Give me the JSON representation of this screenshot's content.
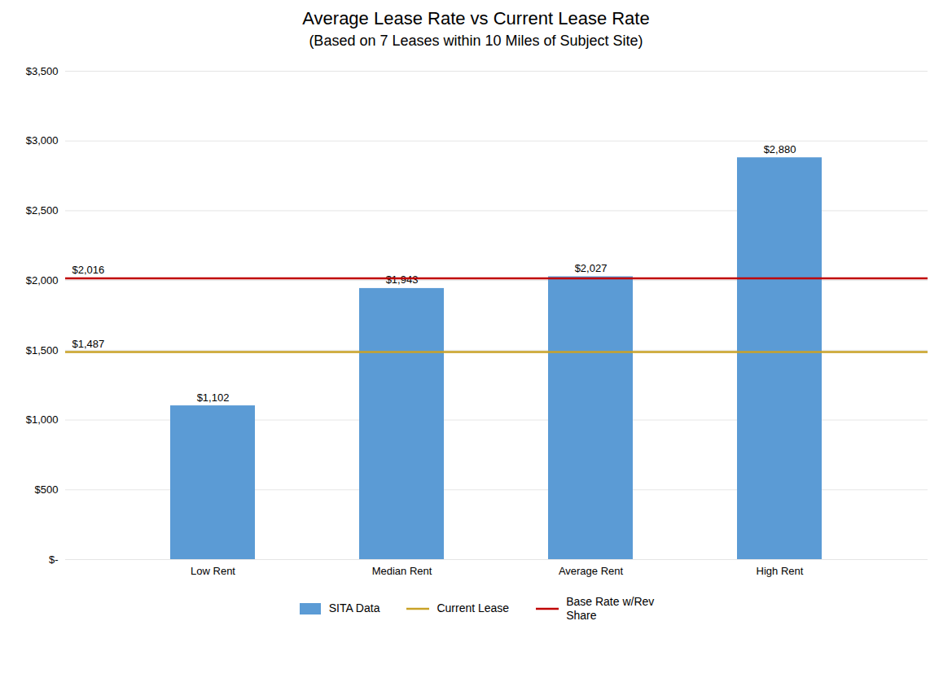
{
  "chart_data": {
    "type": "bar",
    "title": "Average Lease Rate vs Current Lease Rate",
    "subtitle": "(Based on 7 Leases within 10 Miles of Subject Site)",
    "categories": [
      "Low Rent",
      "Median Rent",
      "Average Rent",
      "High Rent"
    ],
    "series": [
      {
        "name": "SITA Data",
        "type": "bar",
        "color": "#5B9BD5",
        "values": [
          1102,
          1943,
          2027,
          2880
        ],
        "value_labels": [
          "$1,102",
          "$1,943",
          "$2,027",
          "$2,880"
        ]
      },
      {
        "name": "Current Lease",
        "type": "hline",
        "color": "#C9A227",
        "value": 1487,
        "value_label": "$1,487"
      },
      {
        "name": "Base Rate w/Rev\nShare",
        "type": "hline",
        "color": "#C00000",
        "value": 2016,
        "value_label": "$2,016"
      }
    ],
    "ylim": [
      0,
      3500
    ],
    "yticks": [
      {
        "value": 0,
        "label": "$-"
      },
      {
        "value": 500,
        "label": "$500"
      },
      {
        "value": 1000,
        "label": "$1,000"
      },
      {
        "value": 1500,
        "label": "$1,500"
      },
      {
        "value": 2000,
        "label": "$2,000"
      },
      {
        "value": 2500,
        "label": "$2,500"
      },
      {
        "value": 3000,
        "label": "$3,000"
      },
      {
        "value": 3500,
        "label": "$3,500"
      }
    ],
    "grid": "y",
    "data_labels": true,
    "legend": "bottom"
  }
}
